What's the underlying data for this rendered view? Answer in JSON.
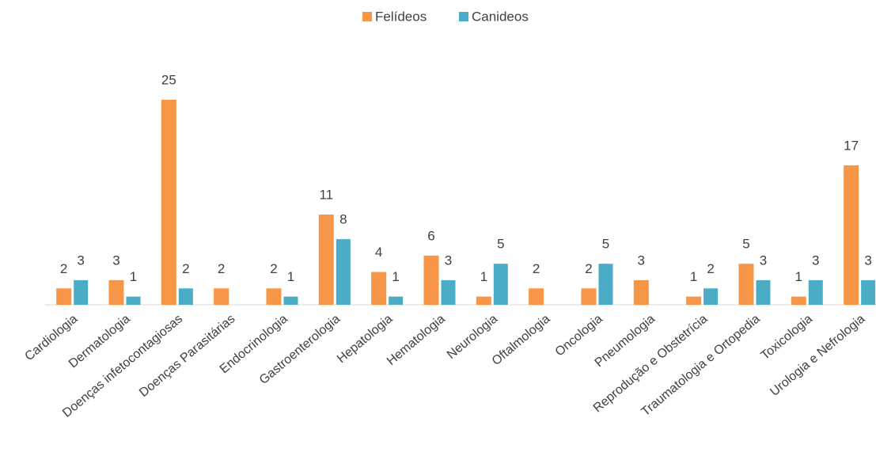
{
  "chart_data": {
    "type": "bar",
    "categories": [
      "Cardiologia",
      "Dermatologia",
      "Doenças infetocontagiosas",
      "Doenças Parasitárias",
      "Endocrinologia",
      "Gastroenterologia",
      "Hepatologia",
      "Hematologia",
      "Neurologia",
      "Oftalmologia",
      "Oncologia",
      "Pneumologia",
      "Reprodução e Obstetrícia",
      "Traumatologia e Ortopedia",
      "Toxicologia",
      "Urologia e Nefrologia"
    ],
    "series": [
      {
        "name": "Felídeos",
        "color": "#f79646",
        "values": [
          2,
          3,
          25,
          2,
          2,
          11,
          4,
          6,
          1,
          2,
          2,
          3,
          1,
          5,
          1,
          17
        ]
      },
      {
        "name": "Canideos",
        "color": "#4bacc6",
        "values": [
          3,
          1,
          2,
          null,
          1,
          8,
          1,
          3,
          5,
          null,
          5,
          null,
          2,
          3,
          3,
          3
        ]
      }
    ],
    "legend": "top",
    "grid": false
  }
}
